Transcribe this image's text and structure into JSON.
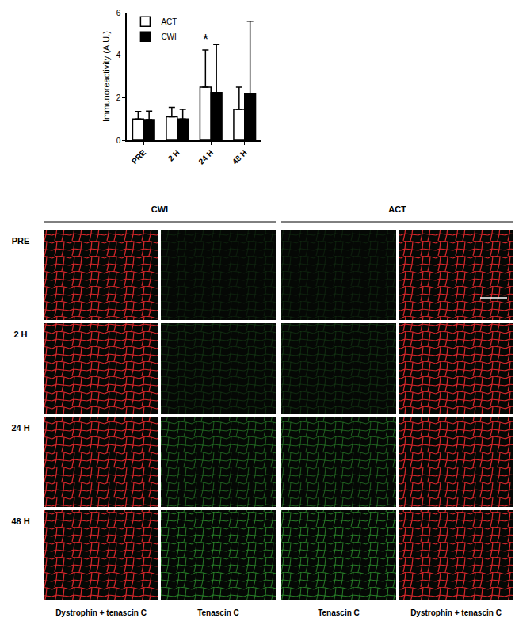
{
  "chart_data": {
    "type": "bar",
    "categories": [
      "PRE",
      "2 H",
      "24 H",
      "48 H"
    ],
    "series": [
      {
        "name": "ACT",
        "color": "#ffffff",
        "values": [
          1.0,
          1.1,
          2.5,
          1.45
        ],
        "error": [
          0.35,
          0.45,
          1.75,
          1.05
        ]
      },
      {
        "name": "CWI",
        "color": "#000000",
        "values": [
          0.97,
          1.0,
          2.25,
          2.2
        ],
        "error": [
          0.4,
          0.45,
          2.25,
          3.4
        ]
      }
    ],
    "y_label": "Immunoreactivity (A.U.)",
    "annotations": [
      {
        "category": "24 H",
        "series": "ACT",
        "text": "*"
      }
    ],
    "ylim": [
      0,
      6
    ],
    "yticks": [
      0,
      2,
      4,
      6
    ],
    "grid": false,
    "legend": "upper left"
  },
  "image_panel": {
    "groups": [
      "CWI",
      "ACT"
    ],
    "rows": [
      "PRE",
      "2 H",
      "24 H",
      "48 H"
    ],
    "columns": [
      "Dystrophin + tenascin C",
      "Tenascin C",
      "Tenascin C",
      "Dystrophin + tenascin C"
    ]
  }
}
